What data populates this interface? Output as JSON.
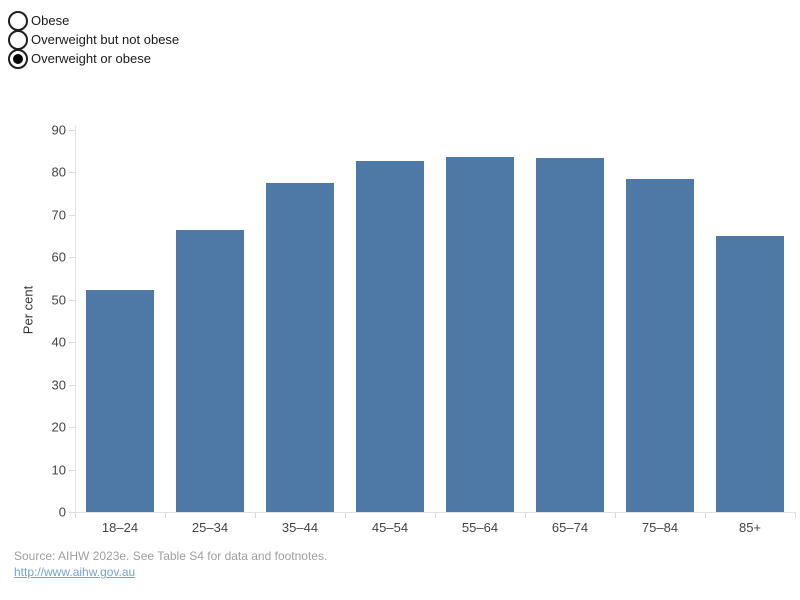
{
  "controls": {
    "radio_options": [
      {
        "label": "Obese",
        "selected": false
      },
      {
        "label": "Overweight but not obese",
        "selected": false
      },
      {
        "label": "Overweight or obese",
        "selected": true
      }
    ]
  },
  "chart_data": {
    "type": "bar",
    "title": "",
    "series_name": "Overweight or obese",
    "categories": [
      "18–24",
      "25–34",
      "35–44",
      "45–54",
      "55–64",
      "65–74",
      "75–84",
      "85+"
    ],
    "values": [
      52.4,
      66.5,
      77.5,
      82.8,
      83.6,
      83.3,
      78.5,
      65.1
    ],
    "xlabel": "",
    "ylabel": "Per cent",
    "ylim": [
      0,
      90
    ],
    "yticks": [
      0,
      10,
      20,
      30,
      40,
      50,
      60,
      70,
      80,
      90
    ],
    "grid": false,
    "legend_position": "top-left"
  },
  "colors": {
    "bar": "#4E79A7",
    "axis_line": "#e2e2e2",
    "tick": "#d9d9d9",
    "footer_text": "#9e9e9e",
    "link": "#76a5c9"
  },
  "footer": {
    "source": "Source: AIHW 2023e. See Table S4 for data and footnotes.",
    "link": "http://www.aihw.gov.au"
  }
}
